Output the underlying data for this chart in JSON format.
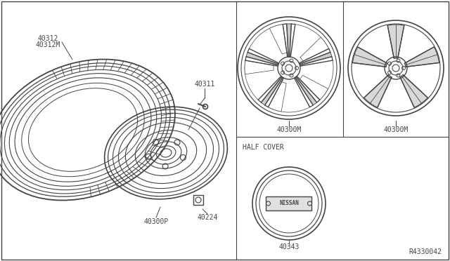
{
  "bg_color": "#ffffff",
  "line_color": "#444444",
  "labels": {
    "tire": "40312\n40312M",
    "valve": "40311",
    "wheel_spare": "40300P",
    "lug_nut": "40224",
    "wheel_alloy1": "40300M",
    "wheel_alloy2": "40300M",
    "half_cover_text": "HALF COVER",
    "nissan_cap": "40343",
    "ref": "R4330042"
  },
  "font_size": 7
}
